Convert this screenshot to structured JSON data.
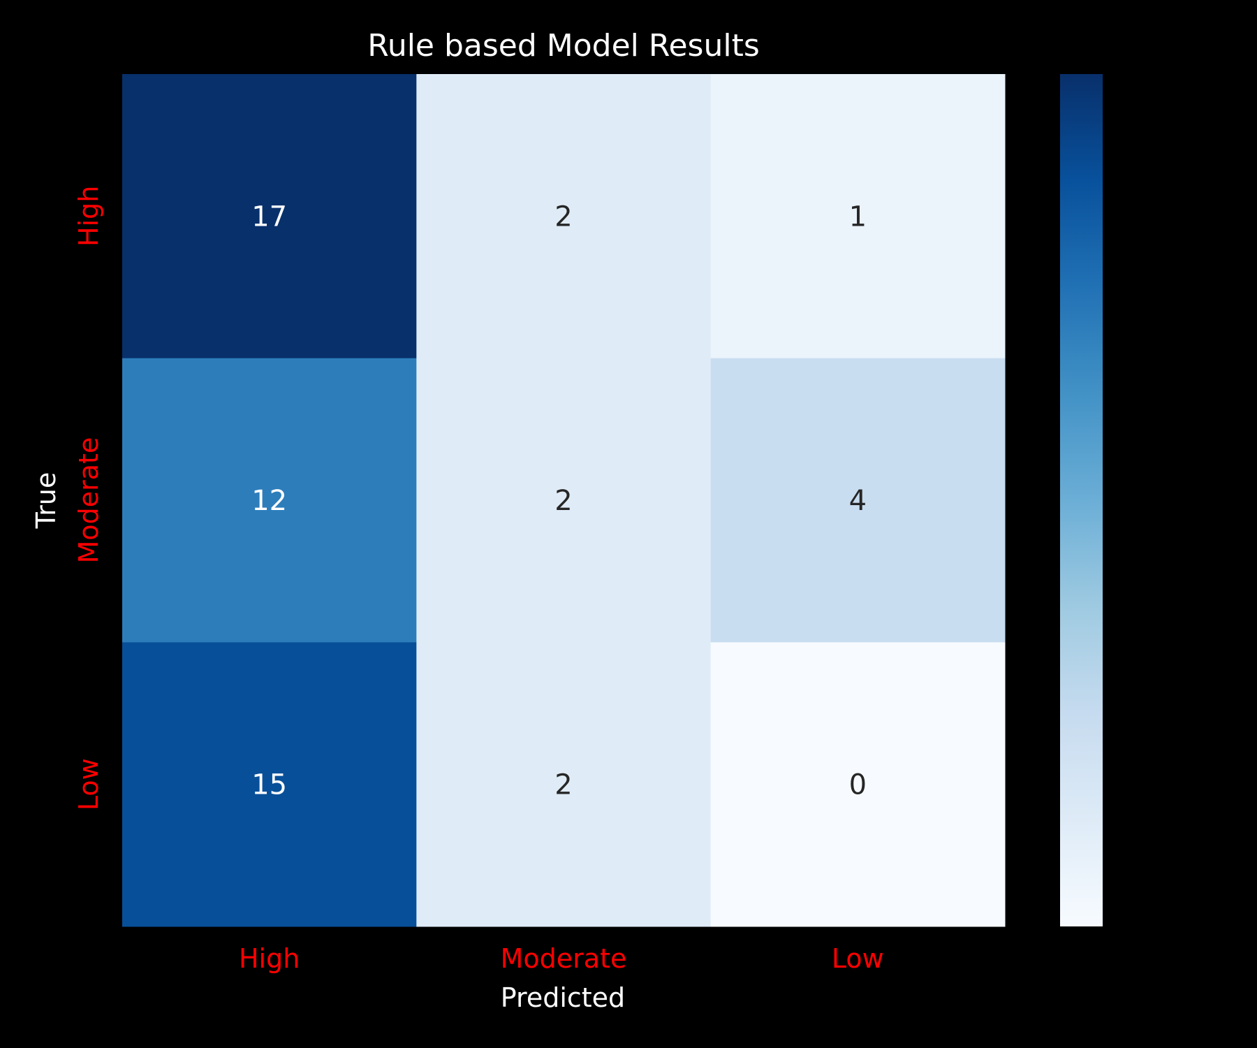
{
  "chart_data": {
    "type": "heatmap",
    "title": "Rule based Model Results",
    "xlabel": "Predicted",
    "ylabel": "True",
    "x_categories": [
      "High",
      "Moderate",
      "Low"
    ],
    "y_categories": [
      "High",
      "Moderate",
      "Low"
    ],
    "values": [
      [
        17,
        2,
        1
      ],
      [
        12,
        2,
        4
      ],
      [
        15,
        2,
        0
      ]
    ],
    "colormap": "Blues",
    "color_range": [
      0,
      17
    ],
    "colorbar": true,
    "colorbar_ticks": [],
    "tick_label_color": "#ff0000",
    "background": "#000000"
  }
}
